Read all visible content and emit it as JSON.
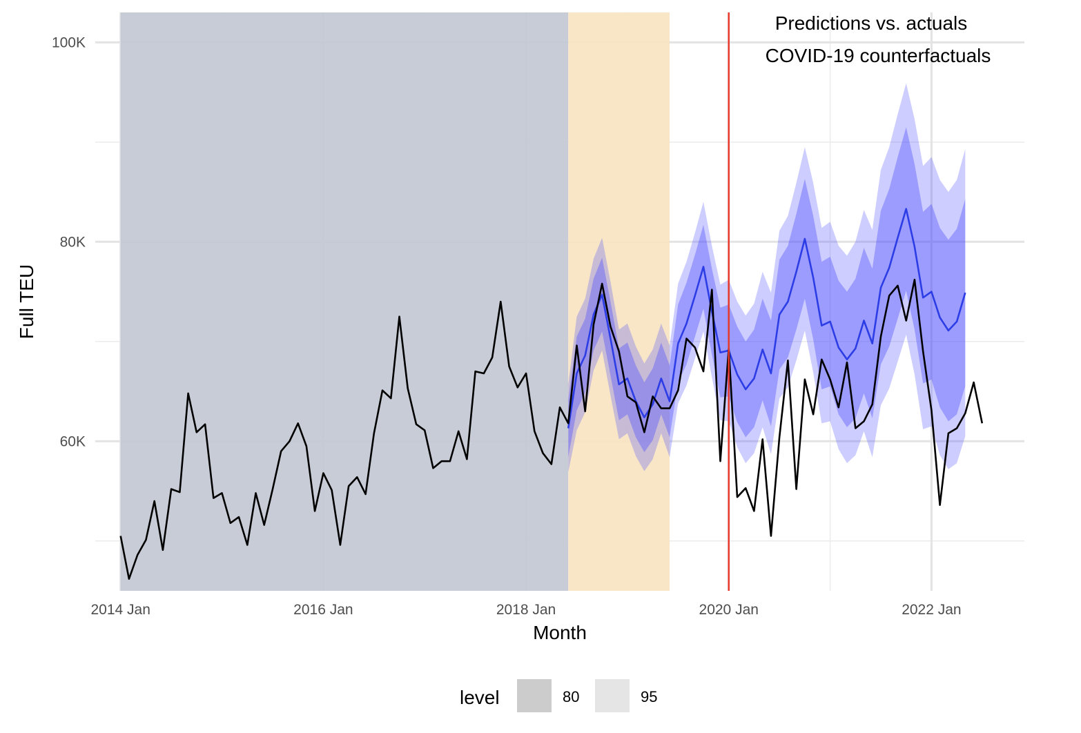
{
  "chart_data": {
    "type": "line",
    "title": "",
    "annotation_lines": [
      "Predictions vs. actuals",
      "COVID-19 counterfactuals"
    ],
    "xlabel": "Month",
    "ylabel": "Full TEU",
    "x_ticks": [
      "2014 Jan",
      "2016 Jan",
      "2018 Jan",
      "2020 Jan",
      "2022 Jan"
    ],
    "y_ticks": [
      "60K",
      "80K",
      "100K"
    ],
    "x_range": [
      "2013-10",
      "2022-12"
    ],
    "ylim": [
      45000,
      103000
    ],
    "grid": true,
    "legend": {
      "title": "level",
      "position": "bottom",
      "entries": [
        {
          "label": "80",
          "color": "#cccccc"
        },
        {
          "label": "95",
          "color": "#e5e5e5"
        }
      ]
    },
    "shaded_regions": [
      {
        "name": "training",
        "start": "2014-01",
        "end": "2018-06",
        "color": "#c4c8d4"
      },
      {
        "name": "validation",
        "start": "2018-06",
        "end": "2019-06",
        "color": "#f8e4c3"
      }
    ],
    "vline": {
      "x": "2020-01",
      "color": "#e8392b"
    },
    "actual": {
      "color": "#000000",
      "start": "2014-01",
      "values": [
        50500,
        46200,
        48600,
        50100,
        54000,
        49100,
        55200,
        54900,
        64800,
        60900,
        61700,
        54300,
        54800,
        51800,
        52400,
        49600,
        54800,
        51600,
        55200,
        59000,
        60000,
        61800,
        59500,
        53000,
        56800,
        55100,
        49600,
        55500,
        56400,
        54700,
        60800,
        65100,
        64300,
        72500,
        65300,
        61700,
        61100,
        57300,
        58000,
        58000,
        61000,
        58200,
        67000,
        66800,
        68400,
        74000,
        67500,
        65400,
        66800,
        61000,
        58800,
        57700,
        63400,
        61800,
        69600,
        63000,
        71700,
        75800,
        71500,
        69000,
        64500,
        63900,
        60900,
        64500,
        63300,
        63300,
        65100,
        70300,
        69400,
        67000,
        75200,
        58000,
        69300,
        54400,
        55300,
        53000,
        60200,
        50500,
        60400,
        68100,
        55200,
        66200,
        62700,
        68200,
        66200,
        63400,
        67900,
        61300,
        62000,
        63700,
        70500,
        74600,
        75600,
        72100,
        76200,
        69000,
        63100,
        53600,
        60800,
        61300,
        62800,
        65900,
        61800
      ]
    },
    "forecast": {
      "color": "#2c3de6",
      "start": "2018-06",
      "mean": [
        61300,
        66800,
        68600,
        72700,
        74700,
        70300,
        65700,
        66300,
        64000,
        62400,
        63700,
        66300,
        64000,
        69800,
        71800,
        74600,
        77500,
        73000,
        68900,
        69100,
        66700,
        65200,
        66300,
        69200,
        66800,
        72700,
        74000,
        77000,
        80300,
        76400,
        71600,
        72000,
        69400,
        68200,
        69300,
        72100,
        69800,
        75400,
        77400,
        80400,
        83300,
        79500,
        74400,
        75000,
        72400,
        71100,
        72000,
        74900
      ],
      "lo80": [
        58400,
        63100,
        64900,
        69100,
        71000,
        66600,
        62100,
        62700,
        60400,
        58900,
        60100,
        62700,
        60400,
        65900,
        67700,
        70500,
        73300,
        68700,
        64400,
        64500,
        61900,
        60400,
        61400,
        64100,
        61500,
        67200,
        68400,
        71200,
        74300,
        70200,
        65200,
        65500,
        62700,
        61400,
        62300,
        64800,
        62300,
        67700,
        69500,
        72300,
        75100,
        71200,
        65800,
        66200,
        63400,
        62000,
        62700,
        65500
      ],
      "hi80": [
        64200,
        70500,
        72300,
        76300,
        78400,
        74000,
        69300,
        69900,
        67600,
        65900,
        67300,
        69900,
        67600,
        73700,
        75900,
        78700,
        81700,
        77300,
        73400,
        73700,
        71500,
        70000,
        71200,
        74300,
        72100,
        78200,
        79600,
        82800,
        86300,
        82600,
        78000,
        78500,
        76100,
        75000,
        76300,
        79400,
        77300,
        83100,
        85300,
        88500,
        91500,
        87800,
        83000,
        83800,
        81400,
        80200,
        81300,
        84300
      ],
      "lo95": [
        56900,
        61100,
        62900,
        67100,
        69100,
        64600,
        60200,
        60800,
        58500,
        57000,
        58200,
        60800,
        58400,
        63800,
        65600,
        68300,
        71000,
        66400,
        62100,
        62000,
        59400,
        57800,
        58800,
        61400,
        58700,
        64300,
        65400,
        68100,
        71100,
        66900,
        61800,
        62000,
        59200,
        57800,
        58600,
        61000,
        58400,
        63600,
        65300,
        68000,
        70700,
        66700,
        61200,
        61500,
        58600,
        57200,
        57800,
        60500
      ],
      "hi95": [
        65700,
        72500,
        74300,
        78300,
        80400,
        76000,
        71200,
        71800,
        69500,
        67800,
        69200,
        71800,
        69600,
        75800,
        78000,
        80900,
        84000,
        79600,
        75700,
        76200,
        74000,
        72600,
        73800,
        77000,
        74900,
        81100,
        82600,
        85900,
        89500,
        85900,
        81400,
        82000,
        79600,
        78600,
        80000,
        83200,
        81200,
        87200,
        89500,
        92800,
        95900,
        92300,
        87600,
        88500,
        86200,
        85000,
        86200,
        89300
      ]
    }
  }
}
